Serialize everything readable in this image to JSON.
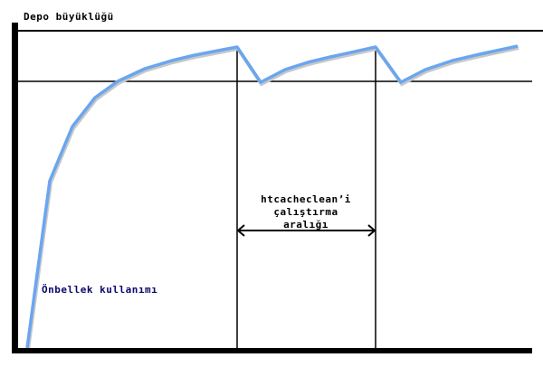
{
  "labels": {
    "y_axis": "Depo büyüklüğü",
    "curve": "Önbellek kullanımı",
    "interval_line1": "htcacheclean’i",
    "interval_line2": "çalıştırma",
    "interval_line3": "aralığı"
  },
  "colors": {
    "curve": "#6aa6f0",
    "axes": "#000000",
    "curve_label": "#0a0a6a"
  }
}
